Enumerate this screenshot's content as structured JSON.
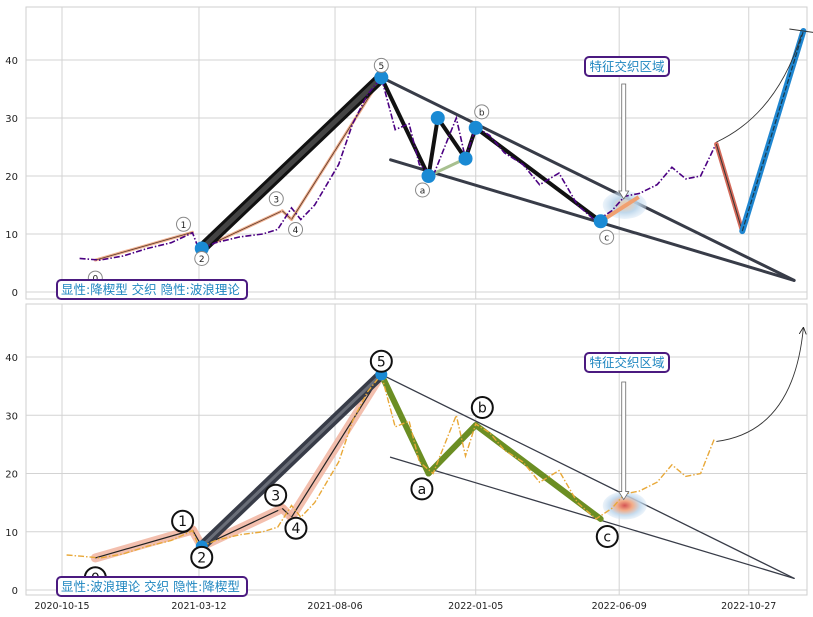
{
  "chart_data": [
    {
      "type": "line",
      "panel": "top",
      "ylim": [
        -1,
        48
      ],
      "y_ticks": [
        0,
        10,
        20,
        30,
        40
      ],
      "grid": true,
      "label_box": "显性:降楔型 交织 隐性:波浪理论",
      "callout": "特征交织区域",
      "colors": {
        "price": "#4b0082",
        "impulse": "#111111",
        "channel": "#383c48",
        "wave_points": "#1a8ad4"
      },
      "price_series": {
        "name": "",
        "x": [
          "2020-11-03",
          "2020-11-25",
          "2020-12-20",
          "2021-01-15",
          "2021-02-10",
          "2021-03-05",
          "2021-03-12",
          "2021-03-30",
          "2021-04-25",
          "2021-05-20",
          "2021-06-05",
          "2021-06-20",
          "2021-06-30",
          "2021-07-15",
          "2021-08-10",
          "2021-08-25",
          "2021-09-10",
          "2021-09-25",
          "2021-10-10",
          "2021-10-25",
          "2021-11-05",
          "2021-11-20",
          "2021-12-05",
          "2021-12-15",
          "2021-12-25",
          "2022-01-05",
          "2022-01-20",
          "2022-02-05",
          "2022-02-25",
          "2022-03-15",
          "2022-04-05",
          "2022-04-25",
          "2022-05-15",
          "2022-06-01",
          "2022-06-15",
          "2022-07-01",
          "2022-07-20",
          "2022-08-05",
          "2022-08-20",
          "2022-09-05",
          "2022-09-20"
        ],
        "y": [
          5.8,
          5.5,
          6.2,
          7.5,
          8.5,
          10.2,
          7.3,
          8.5,
          9.5,
          10.0,
          10.8,
          14.5,
          12.5,
          15.0,
          22.0,
          29.0,
          34.0,
          37.0,
          28.0,
          29.0,
          22.0,
          20.0,
          26.0,
          30.0,
          23.0,
          28.5,
          27.0,
          24.0,
          22.0,
          18.5,
          20.5,
          15.0,
          12.2,
          14.0,
          16.5,
          17.0,
          18.5,
          21.5,
          19.5,
          20.0,
          25.0
        ]
      },
      "waves": [
        {
          "label": "0",
          "x": "2020-11-20",
          "y": 5.5
        },
        {
          "label": "1",
          "x": "2021-03-05",
          "y": 10.3
        },
        {
          "label": "2",
          "x": "2021-03-15",
          "y": 7.5
        },
        {
          "label": "3",
          "x": "2021-06-10",
          "y": 14.0
        },
        {
          "label": "4",
          "x": "2021-06-20",
          "y": 12.5
        },
        {
          "label": "5",
          "x": "2021-09-25",
          "y": 37.0
        },
        {
          "label": "a",
          "x": "2021-11-15",
          "y": 20.0
        },
        {
          "label": "b",
          "x": "2022-01-05",
          "y": 28.3
        },
        {
          "label": "c",
          "x": "2022-05-20",
          "y": 12.2
        }
      ],
      "extra_points": [
        {
          "x": "2021-11-25",
          "y": 30.0
        },
        {
          "x": "2021-12-25",
          "y": 23.0
        }
      ],
      "wedge_lines": [
        {
          "from": {
            "x": "2021-09-25",
            "y": 37.0
          },
          "to": {
            "x": "2022-12-15",
            "y": 2.0
          }
        },
        {
          "from": {
            "x": "2021-10-05",
            "y": 22.8
          },
          "to": {
            "x": "2022-12-15",
            "y": 2.0
          }
        }
      ],
      "projection": [
        {
          "x": "2022-09-22",
          "y": 25.5
        },
        {
          "x": "2022-10-20",
          "y": 10.5
        },
        {
          "x": "2022-12-25",
          "y": 45.0
        }
      ]
    },
    {
      "type": "line",
      "panel": "bottom",
      "ylim": [
        -1,
        48
      ],
      "y_ticks": [
        0,
        10,
        20,
        30,
        40
      ],
      "x_ticks": [
        "2020-10-15",
        "2021-03-12",
        "2021-08-06",
        "2022-01-05",
        "2022-06-09",
        "2022-10-27"
      ],
      "grid": true,
      "label_box": "显性:波浪理论 交织 隐性:降楔型",
      "callout": "特征交织区域",
      "colors": {
        "price": "#e8a838",
        "impulse": "#383c48",
        "correction": "#6b8e23",
        "highlight": "#f0a080"
      },
      "price_series": {
        "name": "",
        "x": [
          "2020-10-20",
          "2020-11-05",
          "2020-11-25",
          "2020-12-20",
          "2021-01-15",
          "2021-02-10",
          "2021-03-05",
          "2021-03-12",
          "2021-03-30",
          "2021-04-25",
          "2021-05-20",
          "2021-06-05",
          "2021-06-20",
          "2021-06-30",
          "2021-07-15",
          "2021-08-10",
          "2021-08-25",
          "2021-09-10",
          "2021-09-25",
          "2021-10-10",
          "2021-10-25",
          "2021-11-05",
          "2021-11-20",
          "2021-12-05",
          "2021-12-15",
          "2021-12-25",
          "2022-01-05",
          "2022-01-20",
          "2022-02-05",
          "2022-02-25",
          "2022-03-15",
          "2022-04-05",
          "2022-04-25",
          "2022-05-15",
          "2022-06-01",
          "2022-06-15",
          "2022-07-01",
          "2022-07-20",
          "2022-08-05",
          "2022-08-20",
          "2022-09-05",
          "2022-09-20"
        ],
        "y": [
          6.0,
          5.8,
          5.5,
          6.2,
          7.5,
          8.5,
          10.2,
          7.3,
          8.5,
          9.5,
          10.0,
          10.8,
          14.5,
          12.5,
          15.0,
          22.0,
          29.0,
          34.0,
          37.0,
          28.0,
          29.0,
          22.0,
          20.0,
          26.0,
          30.0,
          23.0,
          28.5,
          27.0,
          24.0,
          22.0,
          18.5,
          20.5,
          15.0,
          12.2,
          14.0,
          16.5,
          17.0,
          18.5,
          21.5,
          19.5,
          20.0,
          26.0
        ]
      },
      "waves": [
        {
          "label": "0",
          "x": "2020-11-20",
          "y": 5.5
        },
        {
          "label": "1",
          "x": "2021-03-05",
          "y": 10.3
        },
        {
          "label": "2",
          "x": "2021-03-15",
          "y": 7.5
        },
        {
          "label": "3",
          "x": "2021-06-10",
          "y": 14.0
        },
        {
          "label": "4",
          "x": "2021-06-20",
          "y": 12.5
        },
        {
          "label": "5",
          "x": "2021-09-25",
          "y": 37.0
        },
        {
          "label": "a",
          "x": "2021-11-15",
          "y": 20.0
        },
        {
          "label": "b",
          "x": "2022-01-05",
          "y": 28.3
        },
        {
          "label": "c",
          "x": "2022-05-20",
          "y": 12.2
        }
      ],
      "wedge_lines": [
        {
          "from": {
            "x": "2021-09-25",
            "y": 37.0
          },
          "to": {
            "x": "2022-12-15",
            "y": 2.0
          }
        },
        {
          "from": {
            "x": "2021-10-05",
            "y": 22.8
          },
          "to": {
            "x": "2022-12-15",
            "y": 2.0
          }
        }
      ],
      "projection_arrow": {
        "from": {
          "x": "2022-09-22",
          "y": 25.5
        },
        "to": {
          "x": "2022-12-25",
          "y": 45.0
        }
      }
    }
  ]
}
